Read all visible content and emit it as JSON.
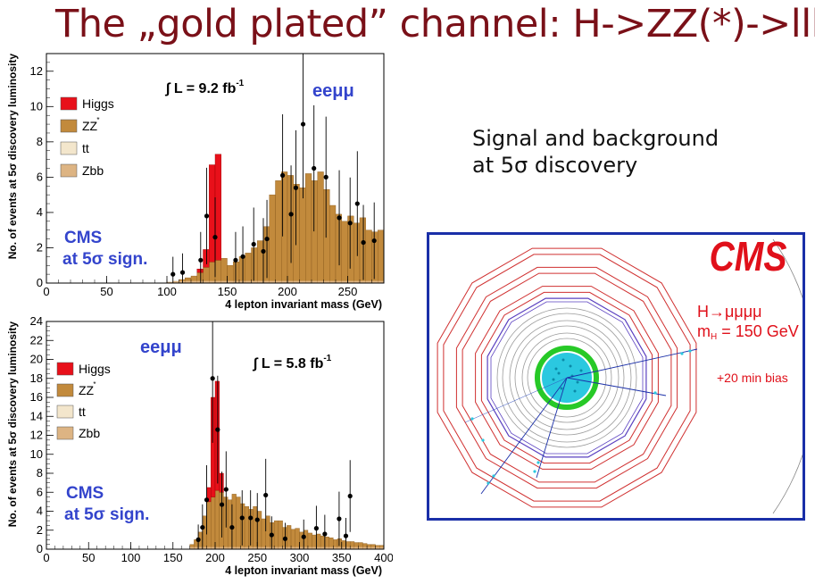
{
  "slide": {
    "title": "The „gold plated” channel: H->ZZ(*)->llll",
    "subtitle_line1": "Signal and background",
    "subtitle_line2": "at 5σ discovery"
  },
  "chart_data": [
    {
      "type": "bar",
      "stacked": true,
      "title": "",
      "xlabel": "4 lepton invariant mass (GeV)",
      "ylabel": "No. of events at 5σ discovery luminosity",
      "xlim": [
        0,
        280
      ],
      "ylim": [
        0,
        13
      ],
      "xticks": [
        0,
        50,
        100,
        150,
        200,
        250
      ],
      "yticks": [
        0,
        2,
        4,
        6,
        8,
        10,
        12
      ],
      "bin_width": 5,
      "luminosity_label": "∫ L = 9.2 fb",
      "luminosity_sup": "-1",
      "channel_label": "eeμμ",
      "annotation_line1": "CMS",
      "annotation_line2": "at 5σ sign.",
      "legend": [
        {
          "label": "Higgs",
          "color": "#e8101a"
        },
        {
          "label": "ZZ*",
          "color": "#c28a3c"
        },
        {
          "label": "tt",
          "color": "#f3e6cc"
        },
        {
          "label": "Zbb",
          "color": "#ddb483"
        }
      ],
      "legend_position": "top-left",
      "background": {
        "x": [
          100,
          105,
          110,
          115,
          120,
          125,
          130,
          135,
          140,
          145,
          150,
          155,
          160,
          165,
          170,
          175,
          180,
          185,
          190,
          195,
          200,
          205,
          210,
          215,
          220,
          225,
          230,
          235,
          240,
          245,
          250,
          255,
          260,
          265,
          270,
          275
        ],
        "values": [
          0.05,
          0.1,
          0.2,
          0.3,
          0.4,
          0.6,
          0.9,
          1.2,
          1.3,
          1.4,
          1.0,
          1.2,
          1.5,
          1.7,
          2.0,
          2.4,
          3.2,
          5.0,
          5.8,
          6.3,
          6.1,
          5.6,
          5.4,
          6.2,
          5.8,
          6.3,
          5.3,
          4.4,
          3.9,
          3.5,
          3.8,
          3.4,
          3.7,
          3.0,
          2.9,
          3.0
        ]
      },
      "higgs": {
        "x": [
          125,
          130,
          135,
          140
        ],
        "values": [
          0.2,
          1.0,
          5.5,
          6.0
        ]
      },
      "data_points": [
        {
          "x": 105,
          "y": 0.5
        },
        {
          "x": 113,
          "y": 0.6
        },
        {
          "x": 128,
          "y": 1.3
        },
        {
          "x": 133,
          "y": 3.8
        },
        {
          "x": 140,
          "y": 2.6
        },
        {
          "x": 157,
          "y": 1.3
        },
        {
          "x": 163,
          "y": 1.5
        },
        {
          "x": 172,
          "y": 2.2
        },
        {
          "x": 180,
          "y": 1.8
        },
        {
          "x": 183,
          "y": 2.5
        },
        {
          "x": 196,
          "y": 6.1
        },
        {
          "x": 203,
          "y": 3.9
        },
        {
          "x": 207,
          "y": 5.4
        },
        {
          "x": 213,
          "y": 9.0
        },
        {
          "x": 222,
          "y": 6.5
        },
        {
          "x": 232,
          "y": 6.0
        },
        {
          "x": 243,
          "y": 3.7
        },
        {
          "x": 252,
          "y": 3.4
        },
        {
          "x": 258,
          "y": 4.5
        },
        {
          "x": 263,
          "y": 2.3
        },
        {
          "x": 272,
          "y": 2.4
        }
      ]
    },
    {
      "type": "bar",
      "stacked": true,
      "title": "",
      "xlabel": "4 lepton invariant mass (GeV)",
      "ylabel": "No. of events at 5σ discovery luminosity",
      "xlim": [
        0,
        400
      ],
      "ylim": [
        0,
        24
      ],
      "xticks": [
        0,
        50,
        100,
        150,
        200,
        250,
        300,
        350,
        400
      ],
      "yticks": [
        0,
        2,
        4,
        6,
        8,
        10,
        12,
        14,
        16,
        18,
        20,
        22,
        24
      ],
      "bin_width": 5,
      "luminosity_label": "∫ L = 5.8 fb",
      "luminosity_sup": "-1",
      "channel_label": "eeμμ",
      "annotation_line1": "CMS",
      "annotation_line2": "at 5σ sign.",
      "legend": [
        {
          "label": "Higgs",
          "color": "#e8101a"
        },
        {
          "label": "ZZ*",
          "color": "#c28a3c"
        },
        {
          "label": "tt",
          "color": "#f3e6cc"
        },
        {
          "label": "Zbb",
          "color": "#ddb483"
        }
      ],
      "legend_position": "top-left",
      "background": {
        "x": [
          170,
          175,
          180,
          185,
          190,
          195,
          200,
          205,
          210,
          215,
          220,
          225,
          230,
          235,
          240,
          245,
          250,
          255,
          260,
          265,
          270,
          275,
          280,
          285,
          290,
          295,
          300,
          305,
          310,
          315,
          320,
          325,
          330,
          335,
          340,
          345,
          350,
          355,
          360,
          365,
          370,
          375,
          380,
          385,
          390,
          395
        ],
        "values": [
          0.5,
          1.0,
          1.8,
          3.5,
          5.0,
          5.5,
          6.2,
          6.0,
          5.5,
          5.2,
          5.8,
          5.5,
          4.8,
          4.5,
          4.2,
          4.5,
          4.0,
          3.2,
          3.5,
          2.8,
          3.0,
          3.0,
          2.3,
          2.5,
          2.1,
          2.2,
          1.8,
          2.0,
          1.7,
          1.5,
          1.6,
          1.4,
          1.3,
          1.2,
          1.0,
          1.1,
          0.9,
          0.8,
          0.8,
          0.7,
          0.7,
          0.6,
          0.5,
          0.5,
          0.4,
          0.4
        ]
      },
      "higgs": {
        "x": [
          190,
          195,
          200,
          205
        ],
        "values": [
          1.5,
          10.5,
          11.5,
          2.0
        ]
      },
      "data_points": [
        {
          "x": 180,
          "y": 1.0
        },
        {
          "x": 185,
          "y": 2.3
        },
        {
          "x": 190,
          "y": 5.2
        },
        {
          "x": 197,
          "y": 18.0
        },
        {
          "x": 203,
          "y": 12.6
        },
        {
          "x": 208,
          "y": 4.7
        },
        {
          "x": 213,
          "y": 6.3
        },
        {
          "x": 220,
          "y": 2.3
        },
        {
          "x": 232,
          "y": 3.3
        },
        {
          "x": 242,
          "y": 3.3
        },
        {
          "x": 250,
          "y": 3.1
        },
        {
          "x": 260,
          "y": 5.7
        },
        {
          "x": 267,
          "y": 1.5
        },
        {
          "x": 283,
          "y": 1.1
        },
        {
          "x": 305,
          "y": 1.3
        },
        {
          "x": 320,
          "y": 2.2
        },
        {
          "x": 330,
          "y": 1.6
        },
        {
          "x": 347,
          "y": 3.2
        },
        {
          "x": 355,
          "y": 1.4
        },
        {
          "x": 360,
          "y": 5.6
        }
      ]
    }
  ],
  "event_display": {
    "logo": "CMS",
    "process_label": "H→μμμμ",
    "mass_label": "m",
    "mass_sub": "H",
    "mass_value": " = 150 GeV",
    "pileup_label": "+20 min bias",
    "colors": {
      "frame": "#1a2fa8",
      "muon_chambers": "#d03030",
      "tracker": "#2fd02f",
      "calorimeter": "#2bc8e0"
    }
  }
}
